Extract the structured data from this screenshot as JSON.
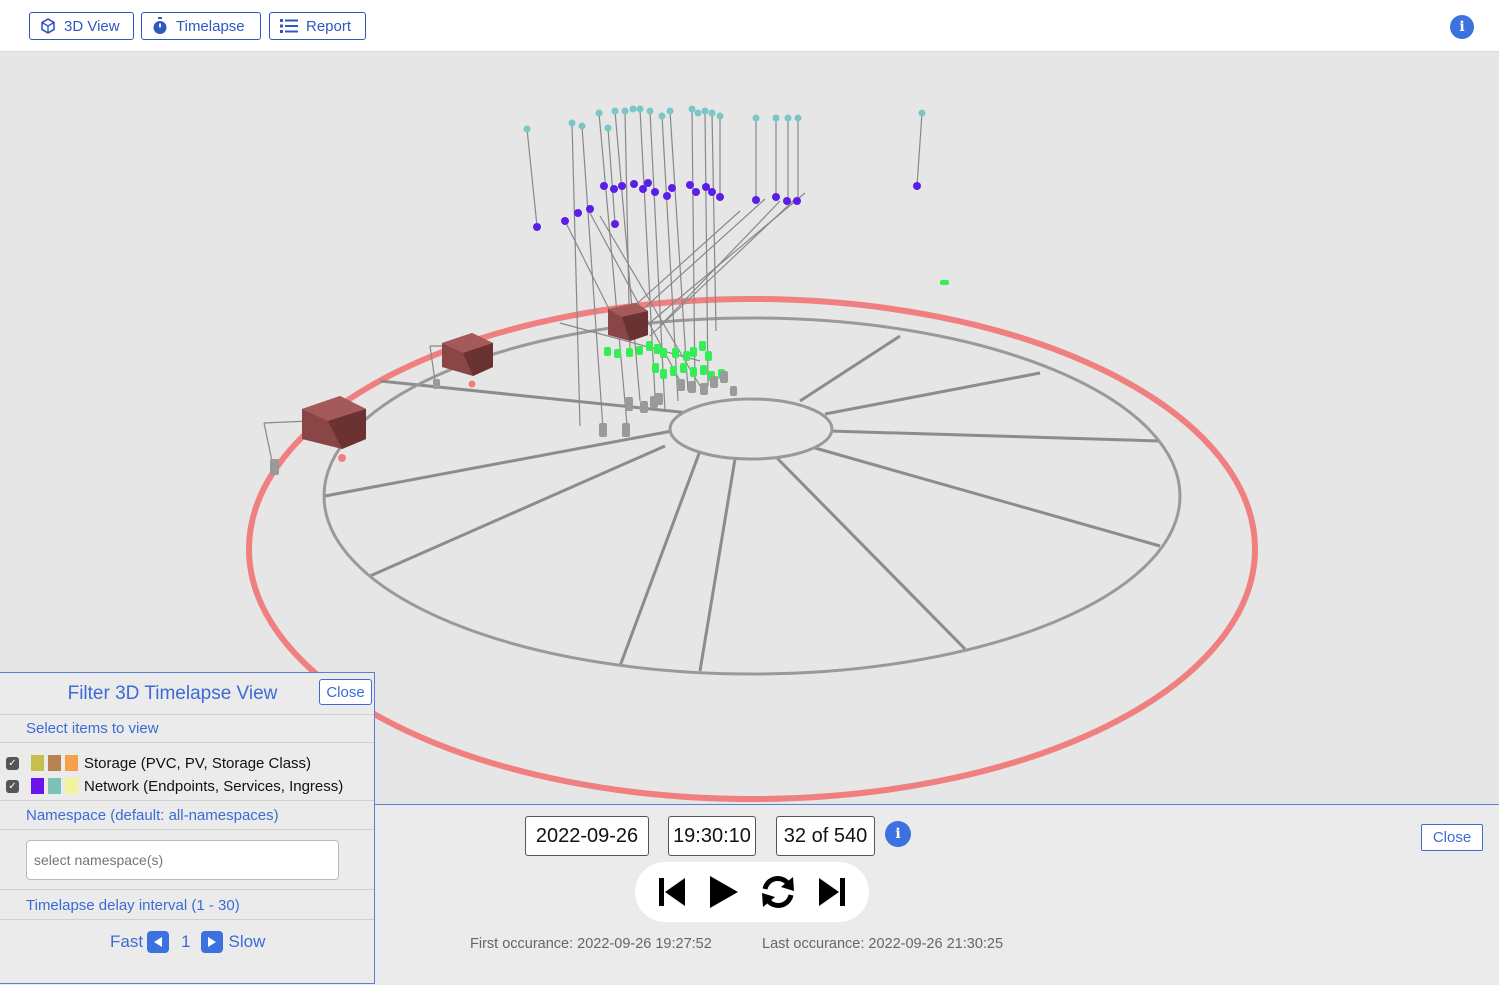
{
  "toolbar": {
    "buttons": [
      {
        "label": "3D View",
        "icon": "cube-icon"
      },
      {
        "label": "Timelapse",
        "icon": "stopwatch-icon"
      },
      {
        "label": "Report",
        "icon": "list-icon"
      }
    ],
    "info_icon": "info-icon"
  },
  "filter_panel": {
    "title": "Filter 3D Timelapse View",
    "close_label": "Close",
    "select_items_label": "Select items to view",
    "items": [
      {
        "label": "Storage (PVC, PV, Storage Class)",
        "checked": true,
        "swatches": [
          "#c8bf4b",
          "#b88354",
          "#f5a04b"
        ]
      },
      {
        "label": "Network (Endpoints, Services, Ingress)",
        "checked": true,
        "swatches": [
          "#6a13ee",
          "#7cc2b6",
          "#f3f39e"
        ]
      }
    ],
    "namespace_label": "Namespace (default: all-namespaces)",
    "namespace_placeholder": "select namespace(s)",
    "delay_label": "Timelapse delay interval (1 - 30)",
    "fast_label": "Fast",
    "delay_value": "1",
    "slow_label": "Slow"
  },
  "timelapse": {
    "date": "2022-09-26",
    "time": "19:30:10",
    "position": "32 of 540",
    "first_occurrence": "First occurance: 2022-09-26 19:27:52",
    "last_occurrence": "Last occurance: 2022-09-26 21:30:25",
    "close_label": "Close",
    "controls": [
      "skip-back-icon",
      "play-icon",
      "refresh-icon",
      "skip-forward-icon"
    ]
  },
  "colors": {
    "accent": "#3b6bd6",
    "ring": "#f08080",
    "cluster_cube": "#7a3a3a",
    "pod": "#33ee55",
    "service": "#5a1ee8",
    "endpoint": "#7cc6c6"
  }
}
